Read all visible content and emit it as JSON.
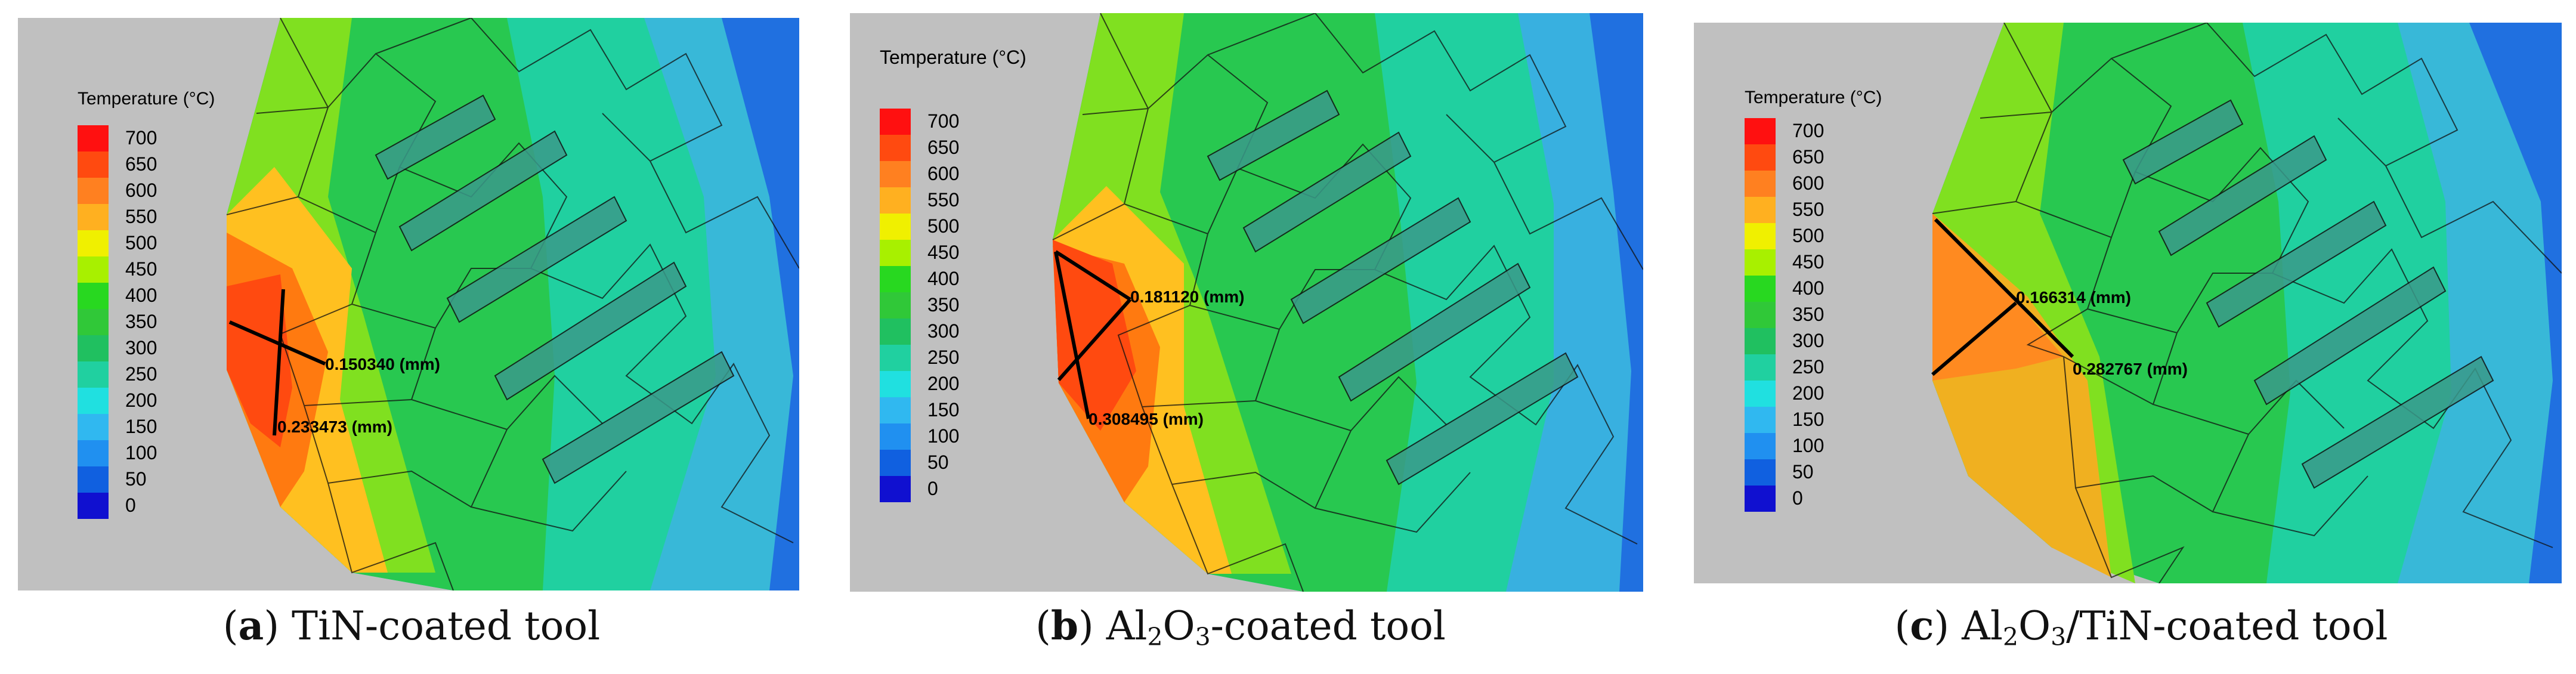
{
  "panels": [
    {
      "letter": "a",
      "caption": "TiN-coated tool",
      "legend_title": "Temperature (°C)",
      "legend_levels": [
        "700",
        "650",
        "600",
        "550",
        "500",
        "450",
        "400",
        "350",
        "300",
        "250",
        "200",
        "150",
        "100",
        "50",
        "0"
      ],
      "measure_1": "0.150340 (mm)",
      "measure_2": "0.233473 (mm)"
    },
    {
      "letter": "b",
      "caption": "Al2O3-coated tool",
      "legend_title": "Temperature (°C)",
      "legend_levels": [
        "700",
        "650",
        "600",
        "550",
        "500",
        "450",
        "400",
        "350",
        "300",
        "250",
        "200",
        "150",
        "100",
        "50",
        "0"
      ],
      "measure_1": "0.181120 (mm)",
      "measure_2": "0.308495 (mm)"
    },
    {
      "letter": "c",
      "caption": "Al2O3/TiN-coated tool",
      "legend_title": "Temperature (°C)",
      "legend_levels": [
        "700",
        "650",
        "600",
        "550",
        "500",
        "450",
        "400",
        "350",
        "300",
        "250",
        "200",
        "150",
        "100",
        "50",
        "0"
      ],
      "measure_1": "0.166314 (mm)",
      "measure_2": "0.282767 (mm)"
    }
  ],
  "colors": {
    "background": "#c0c0c0",
    "scale": [
      "#ff1010",
      "#ff4a10",
      "#ff8020",
      "#ffb020",
      "#f0f000",
      "#a8f000",
      "#28d820",
      "#30c838",
      "#20c060",
      "#20d0a0",
      "#20e0e0",
      "#30b8f0",
      "#2090f0",
      "#1060e0",
      "#1010d0"
    ]
  }
}
